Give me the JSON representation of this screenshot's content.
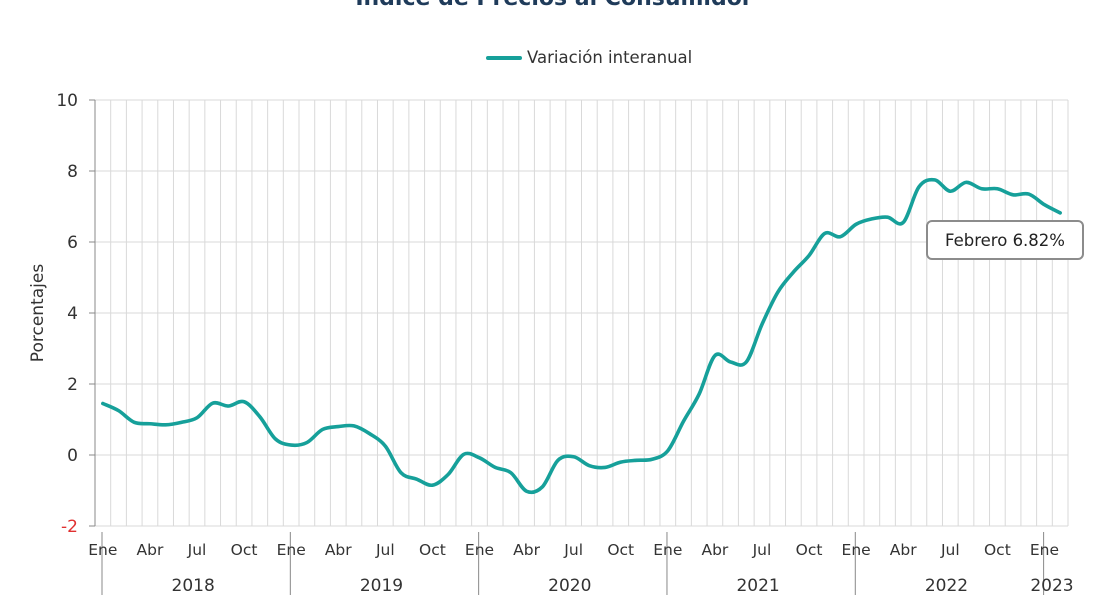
{
  "title": "Índice de Precios al Consumidor",
  "legend": {
    "label": "Variación interanual",
    "color": "#16a09a"
  },
  "annotation": {
    "text": "Febrero 6.82%"
  },
  "chart_data": {
    "type": "line",
    "title": "Índice de Precios al Consumidor",
    "xlabel": "",
    "ylabel": "Porcentajes",
    "ylim": [
      -2,
      10
    ],
    "yticks": [
      -2,
      0,
      2,
      4,
      6,
      8,
      10
    ],
    "grid": true,
    "legend_position": "top-center",
    "year_labels": [
      "2018",
      "2019",
      "2020",
      "2021",
      "2022",
      "2023"
    ],
    "month_tick_labels": [
      "Ene",
      "Abr",
      "Jul",
      "Oct"
    ],
    "x": [
      "2018-01",
      "2018-02",
      "2018-03",
      "2018-04",
      "2018-05",
      "2018-06",
      "2018-07",
      "2018-08",
      "2018-09",
      "2018-10",
      "2018-11",
      "2018-12",
      "2019-01",
      "2019-02",
      "2019-03",
      "2019-04",
      "2019-05",
      "2019-06",
      "2019-07",
      "2019-08",
      "2019-09",
      "2019-10",
      "2019-11",
      "2019-12",
      "2020-01",
      "2020-02",
      "2020-03",
      "2020-04",
      "2020-05",
      "2020-06",
      "2020-07",
      "2020-08",
      "2020-09",
      "2020-10",
      "2020-11",
      "2020-12",
      "2021-01",
      "2021-02",
      "2021-03",
      "2021-04",
      "2021-05",
      "2021-06",
      "2021-07",
      "2021-08",
      "2021-09",
      "2021-10",
      "2021-11",
      "2021-12",
      "2022-01",
      "2022-02",
      "2022-03",
      "2022-04",
      "2022-05",
      "2022-06",
      "2022-07",
      "2022-08",
      "2022-09",
      "2022-10",
      "2022-11",
      "2022-12",
      "2023-01",
      "2023-02"
    ],
    "series": [
      {
        "name": "Variación interanual",
        "color": "#16a09a",
        "values": [
          1.45,
          1.25,
          0.92,
          0.88,
          0.85,
          0.92,
          1.05,
          1.46,
          1.38,
          1.5,
          1.08,
          0.45,
          0.28,
          0.35,
          0.72,
          0.8,
          0.82,
          0.6,
          0.25,
          -0.5,
          -0.68,
          -0.85,
          -0.55,
          0.02,
          -0.08,
          -0.35,
          -0.5,
          -1.02,
          -0.9,
          -0.15,
          -0.05,
          -0.3,
          -0.35,
          -0.2,
          -0.15,
          -0.12,
          0.12,
          0.95,
          1.72,
          2.8,
          2.62,
          2.62,
          3.68,
          4.58,
          5.15,
          5.62,
          6.24,
          6.15,
          6.5,
          6.65,
          6.7,
          6.55,
          7.55,
          7.75,
          7.43,
          7.68,
          7.5,
          7.5,
          7.33,
          7.35,
          7.05,
          6.82
        ]
      }
    ]
  }
}
